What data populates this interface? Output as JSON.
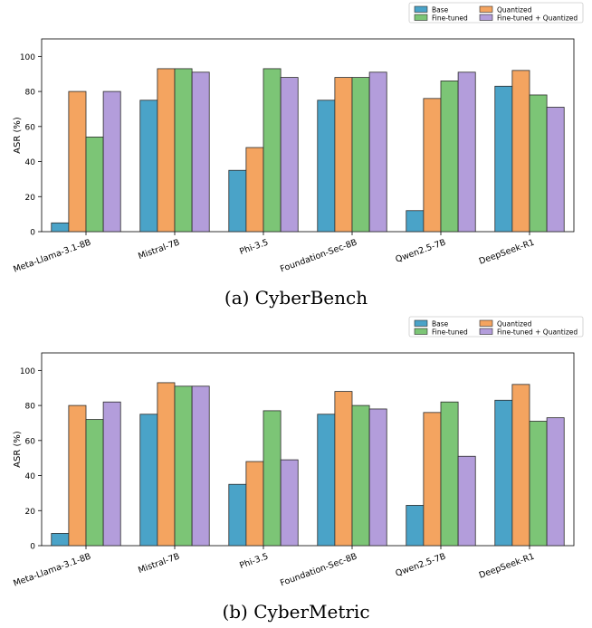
{
  "chart_data": [
    {
      "type": "bar",
      "caption": "(a) CyberBench",
      "categories": [
        "Meta-Llama-3.1-8B",
        "Mistral-7B",
        "Phi-3.5",
        "Foundation-Sec-8B",
        "Qwen2.5-7B",
        "DeepSeek-R1"
      ],
      "series": [
        {
          "name": "Base",
          "values": [
            5,
            75,
            35,
            75,
            12,
            83
          ]
        },
        {
          "name": "Quantized",
          "values": [
            80,
            93,
            48,
            88,
            76,
            92
          ]
        },
        {
          "name": "Fine-tuned",
          "values": [
            54,
            93,
            93,
            88,
            86,
            78
          ]
        },
        {
          "name": "Fine-tuned + Quantized",
          "values": [
            80,
            91,
            88,
            91,
            91,
            71
          ]
        }
      ],
      "ylabel": "ASR (%)",
      "ylim": [
        0,
        110
      ],
      "yticks": [
        0,
        20,
        40,
        60,
        80,
        100
      ],
      "legend": "above top-right, 2 columns",
      "grid": false
    },
    {
      "type": "bar",
      "caption": "(b) CyberMetric",
      "categories": [
        "Meta-Llama-3.1-8B",
        "Mistral-7B",
        "Phi-3.5",
        "Foundation-Sec-8B",
        "Qwen2.5-7B",
        "DeepSeek-R1"
      ],
      "series": [
        {
          "name": "Base",
          "values": [
            7,
            75,
            35,
            75,
            23,
            83
          ]
        },
        {
          "name": "Quantized",
          "values": [
            80,
            93,
            48,
            88,
            76,
            92
          ]
        },
        {
          "name": "Fine-tuned",
          "values": [
            72,
            91,
            77,
            80,
            82,
            71
          ]
        },
        {
          "name": "Fine-tuned + Quantized",
          "values": [
            82,
            91,
            49,
            78,
            51,
            73
          ]
        }
      ],
      "ylabel": "ASR (%)",
      "ylim": [
        0,
        110
      ],
      "yticks": [
        0,
        20,
        40,
        60,
        80,
        100
      ],
      "legend": "above top-right, 2 columns",
      "grid": false
    }
  ],
  "colors": {
    "Base": "#4aa3c8",
    "Quantized": "#f4a460",
    "Fine-tuned": "#7cc576",
    "Fine-tuned + Quantized": "#b39ddb",
    "edge": "#2b2b2b"
  }
}
